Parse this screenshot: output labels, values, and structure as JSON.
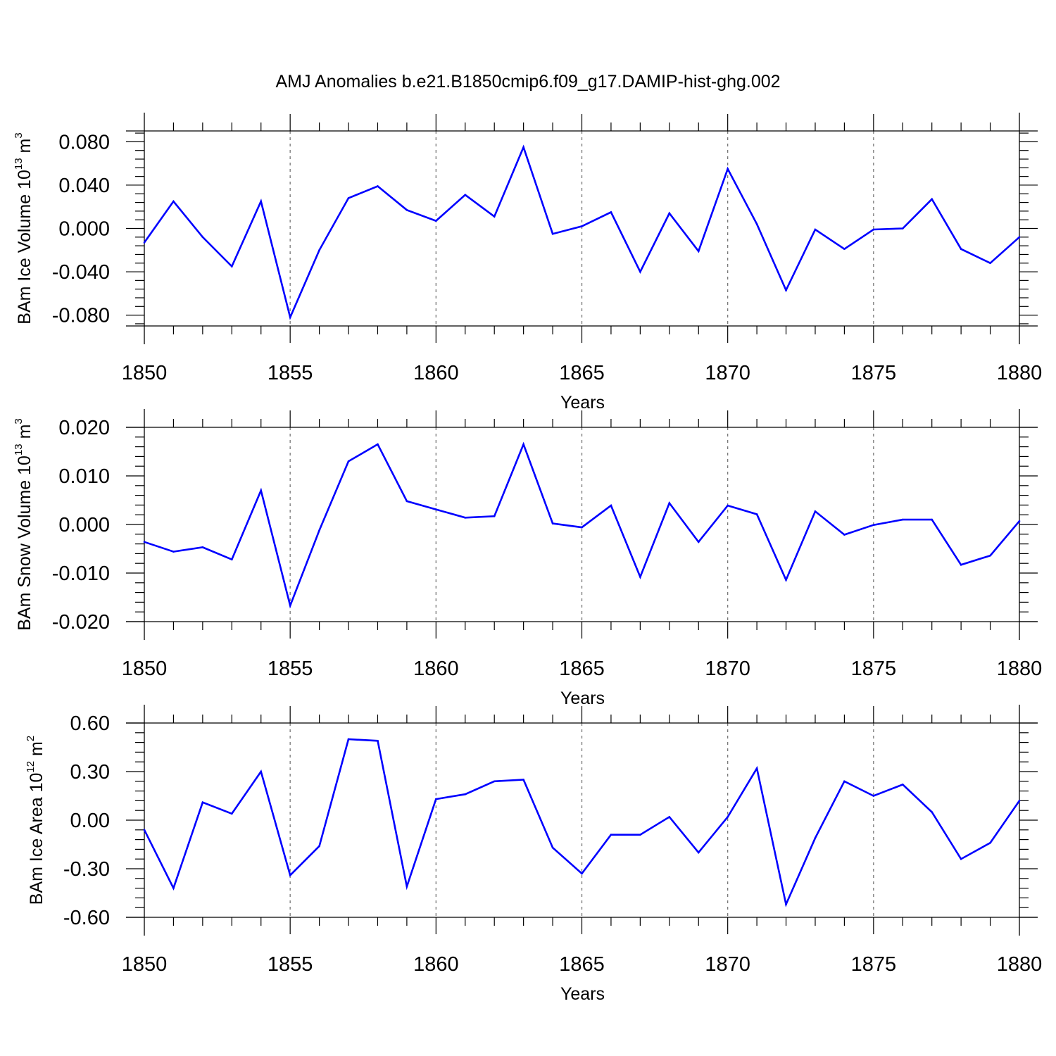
{
  "title": "AMJ Anomalies b.e21.B1850cmip6.f09_g17.DAMIP-hist-ghg.002",
  "line_color": "#0000ff",
  "chart_data": [
    {
      "type": "line",
      "ylabel": {
        "text": "BAm Ice Volume 10",
        "sup": "13",
        "unit": " m",
        "unit_sup": "3"
      },
      "xlabel": "Years",
      "xlim": [
        1850,
        1880
      ],
      "ylim": [
        -0.09,
        0.09
      ],
      "yticks": [
        -0.08,
        -0.04,
        0.0,
        0.04,
        0.08
      ],
      "ytick_labels": [
        "-0.080",
        "-0.040",
        "0.000",
        "0.040",
        "0.080"
      ],
      "xticks": [
        1850,
        1855,
        1860,
        1865,
        1870,
        1875,
        1880
      ],
      "xtick_labels": [
        "1850",
        "1855",
        "1860",
        "1865",
        "1870",
        "1875",
        "1880"
      ],
      "x": [
        1850,
        1851,
        1852,
        1853,
        1854,
        1855,
        1856,
        1857,
        1858,
        1859,
        1860,
        1861,
        1862,
        1863,
        1864,
        1865,
        1866,
        1867,
        1868,
        1869,
        1870,
        1871,
        1872,
        1873,
        1874,
        1875,
        1876,
        1877,
        1878,
        1879,
        1880
      ],
      "y": [
        -0.013,
        0.025,
        -0.008,
        -0.035,
        0.025,
        -0.082,
        -0.02,
        0.028,
        0.039,
        0.017,
        0.007,
        0.031,
        0.011,
        0.075,
        -0.005,
        0.002,
        0.015,
        -0.04,
        0.014,
        -0.021,
        0.055,
        0.004,
        -0.057,
        -0.001,
        -0.019,
        -0.001,
        0.0,
        0.027,
        -0.019,
        -0.032,
        -0.008
      ]
    },
    {
      "type": "line",
      "ylabel": {
        "text": "BAm Snow Volume 10",
        "sup": "13",
        "unit": " m",
        "unit_sup": "3"
      },
      "xlabel": "Years",
      "xlim": [
        1850,
        1880
      ],
      "ylim": [
        -0.02,
        0.02
      ],
      "yticks": [
        -0.02,
        -0.01,
        0.0,
        0.01,
        0.02
      ],
      "ytick_labels": [
        "-0.020",
        "-0.010",
        "0.000",
        "0.010",
        "0.020"
      ],
      "xticks": [
        1850,
        1855,
        1860,
        1865,
        1870,
        1875,
        1880
      ],
      "xtick_labels": [
        "1850",
        "1855",
        "1860",
        "1865",
        "1870",
        "1875",
        "1880"
      ],
      "x": [
        1850,
        1851,
        1852,
        1853,
        1854,
        1855,
        1856,
        1857,
        1858,
        1859,
        1860,
        1861,
        1862,
        1863,
        1864,
        1865,
        1866,
        1867,
        1868,
        1869,
        1870,
        1871,
        1872,
        1873,
        1874,
        1875,
        1876,
        1877,
        1878,
        1879,
        1880
      ],
      "y": [
        -0.0036,
        -0.0056,
        -0.0047,
        -0.0072,
        0.007,
        -0.0167,
        -0.0012,
        0.013,
        0.0165,
        0.0048,
        0.0031,
        0.0014,
        0.0017,
        0.0165,
        0.0002,
        -0.0006,
        0.0039,
        -0.0108,
        0.0044,
        -0.0036,
        0.0039,
        0.0021,
        -0.0114,
        0.0027,
        -0.0021,
        -0.0001,
        0.001,
        0.001,
        -0.0083,
        -0.0064,
        0.0007
      ]
    },
    {
      "type": "line",
      "ylabel": {
        "text": "BAm Ice Area 10",
        "sup": "12",
        "unit": " m",
        "unit_sup": "2"
      },
      "xlabel": "Years",
      "xlim": [
        1850,
        1880
      ],
      "ylim": [
        -0.6,
        0.6
      ],
      "yticks": [
        -0.6,
        -0.3,
        0.0,
        0.3,
        0.6
      ],
      "ytick_labels": [
        "-0.60",
        "-0.30",
        "0.00",
        "0.30",
        "0.60"
      ],
      "xticks": [
        1850,
        1855,
        1860,
        1865,
        1870,
        1875,
        1880
      ],
      "xtick_labels": [
        "1850",
        "1855",
        "1860",
        "1865",
        "1870",
        "1875",
        "1880"
      ],
      "x": [
        1850,
        1851,
        1852,
        1853,
        1854,
        1855,
        1856,
        1857,
        1858,
        1859,
        1860,
        1861,
        1862,
        1863,
        1864,
        1865,
        1866,
        1867,
        1868,
        1869,
        1870,
        1871,
        1872,
        1873,
        1874,
        1875,
        1876,
        1877,
        1878,
        1879,
        1880
      ],
      "y": [
        -0.06,
        -0.42,
        0.11,
        0.04,
        0.3,
        -0.34,
        -0.16,
        0.5,
        0.49,
        -0.41,
        0.13,
        0.16,
        0.24,
        0.25,
        -0.17,
        -0.33,
        -0.09,
        -0.09,
        0.02,
        -0.2,
        0.02,
        0.32,
        -0.52,
        -0.11,
        0.24,
        0.15,
        0.22,
        0.05,
        -0.24,
        -0.14,
        0.12
      ]
    }
  ]
}
